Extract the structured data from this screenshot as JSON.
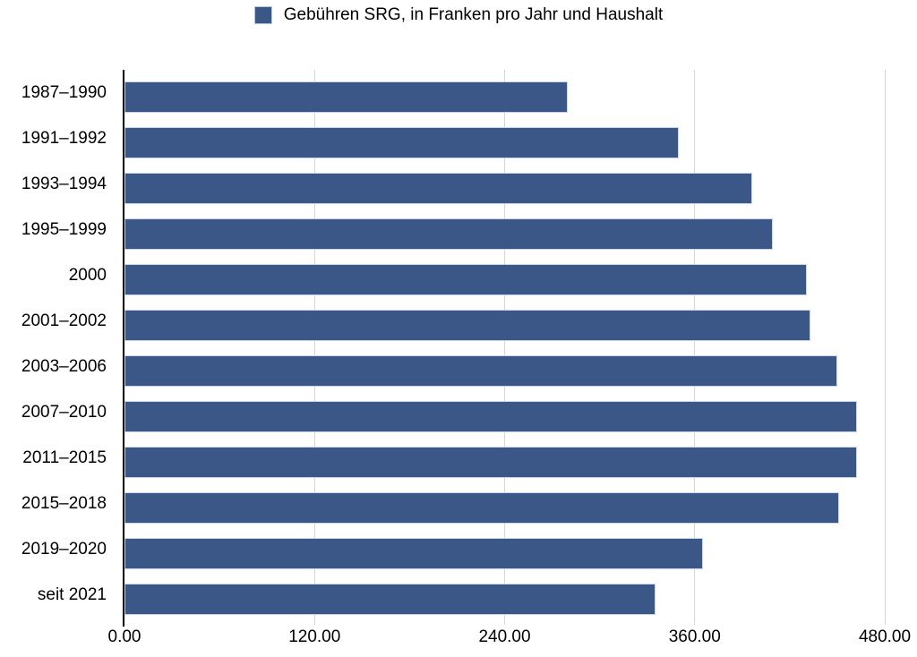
{
  "legend": {
    "label": "Gebühren SRG, in Franken pro Jahr und Haushalt",
    "swatch_color": "#3A5787"
  },
  "chart_data": {
    "type": "bar",
    "orientation": "horizontal",
    "title": "",
    "legend_entries": [
      "Gebühren SRG, in Franken pro Jahr und Haushalt"
    ],
    "legend_position": "top-center",
    "categories": [
      "1987–1990",
      "1991–1992",
      "1993–1994",
      "1995–1999",
      "2000",
      "2001–2002",
      "2003–2006",
      "2007–2010",
      "2011–2015",
      "2015–2018",
      "2019–2020",
      "seit 2021"
    ],
    "values": [
      279.6,
      349.8,
      396.6,
      409.2,
      430.8,
      433.2,
      450.0,
      462.4,
      462.4,
      451.1,
      365.0,
      335.0
    ],
    "xlabel": "",
    "ylabel": "",
    "xlim": [
      0,
      480
    ],
    "x_tick_labels": [
      "0.00",
      "120.00",
      "240.00",
      "360.00",
      "480.00"
    ],
    "x_tick_values": [
      0,
      120,
      240,
      360,
      480
    ],
    "grid": true,
    "bar_color": "#3A5787",
    "bar_border_color": "#c9d5ea",
    "gridline_color": "#d6d6d6",
    "axis_color": "#000000"
  }
}
